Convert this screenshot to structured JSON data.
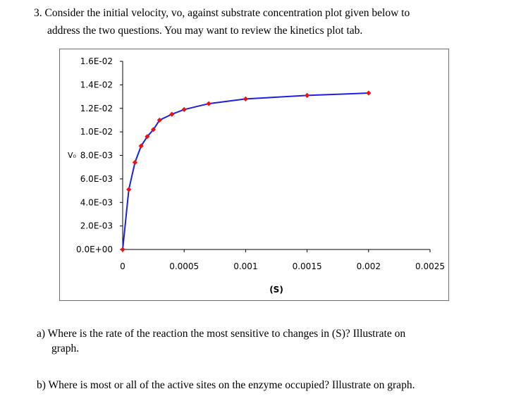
{
  "question": {
    "line1": "3. Consider the initial velocity, vo, against substrate concentration plot given below to",
    "line2": "address the two questions.  You may want to review the kinetics plot tab."
  },
  "chart_data": {
    "type": "line",
    "title": "",
    "xlabel": "(S)",
    "ylabel": "V₀",
    "xlim": [
      0,
      0.0025
    ],
    "ylim": [
      0,
      0.016
    ],
    "x_tick_labels": [
      "0",
      "0.0005",
      "0.001",
      "0.0015",
      "0.002",
      "0.0025"
    ],
    "y_tick_labels": [
      "0.0E+00",
      "2.0E-03",
      "4.0E-03",
      "6.0E-03",
      "8.0E-03",
      "1.0E-02",
      "1.2E-02",
      "1.4E-02",
      "1.6E-02"
    ],
    "grid": false,
    "legend": "none",
    "line_color": "#1f1fe0",
    "marker_color": "#ee1111",
    "series": [
      {
        "x": [
          0,
          5e-05,
          0.0001,
          0.00015,
          0.0002,
          0.00025,
          0.0003,
          0.0004,
          0.0005,
          0.0007,
          0.001,
          0.0015,
          0.002
        ],
        "y": [
          0,
          0.0051,
          0.0074,
          0.0088,
          0.0096,
          0.0102,
          0.011,
          0.0115,
          0.0119,
          0.0124,
          0.0128,
          0.0131,
          0.0133
        ]
      }
    ]
  },
  "parts": {
    "a_line1": "a)  Where is the rate of the reaction the most sensitive to changes in (S)?  Illustrate on",
    "a_line2": "graph.",
    "b_line1": "b)  Where is most or all of the active sites on the enzyme occupied?  Illustrate on graph."
  }
}
